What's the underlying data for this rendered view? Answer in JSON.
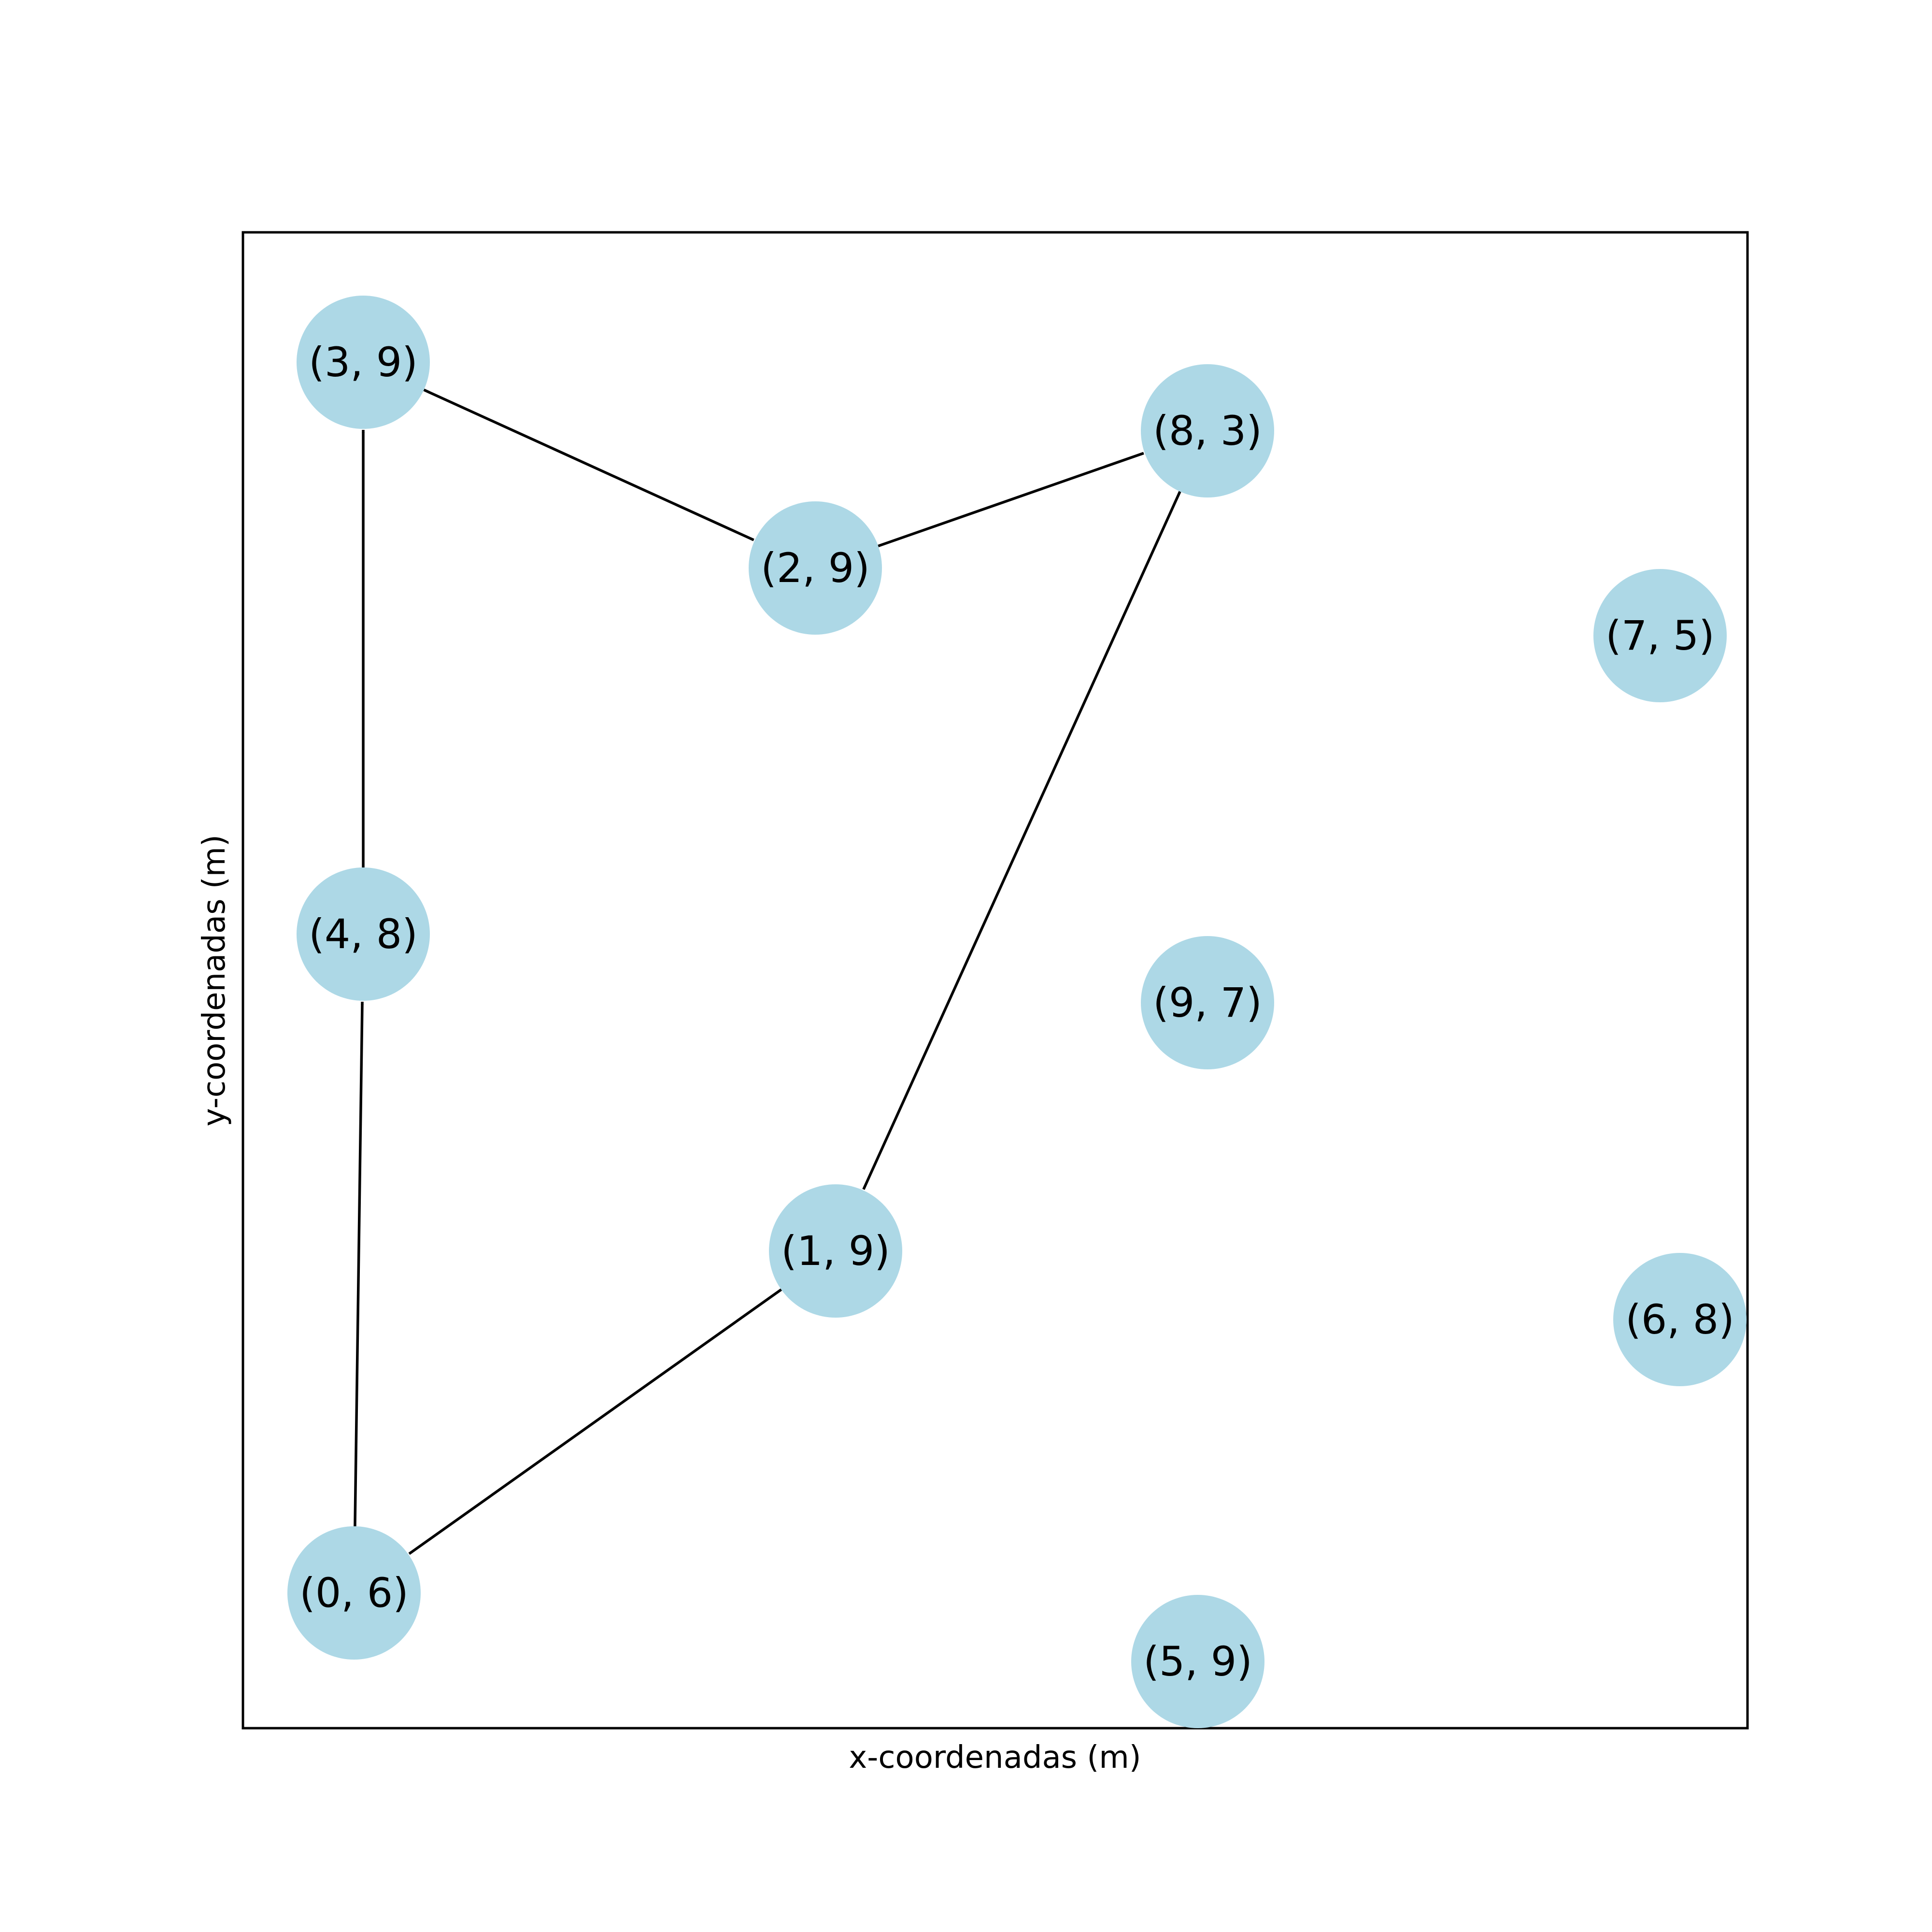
{
  "axes": {
    "xlabel": "x-coordenadas (m)",
    "ylabel": "y-coordenadas (m)"
  },
  "colors": {
    "node_fill": "#add8e6",
    "edge": "#000000",
    "frame": "#000000"
  },
  "nodes": [
    {
      "id": "3_9",
      "label": "(3, 9)"
    },
    {
      "id": "2_9",
      "label": "(2, 9)"
    },
    {
      "id": "8_3",
      "label": "(8, 3)"
    },
    {
      "id": "7_5",
      "label": "(7, 5)"
    },
    {
      "id": "4_8",
      "label": "(4, 8)"
    },
    {
      "id": "9_7",
      "label": "(9, 7)"
    },
    {
      "id": "1_9",
      "label": "(1, 9)"
    },
    {
      "id": "6_8",
      "label": "(6, 8)"
    },
    {
      "id": "0_6",
      "label": "(0, 6)"
    },
    {
      "id": "5_9",
      "label": "(5, 9)"
    }
  ],
  "edges": [
    {
      "from": "0_6",
      "to": "4_8"
    },
    {
      "from": "4_8",
      "to": "3_9"
    },
    {
      "from": "3_9",
      "to": "2_9"
    },
    {
      "from": "2_9",
      "to": "8_3"
    },
    {
      "from": "8_3",
      "to": "1_9"
    },
    {
      "from": "1_9",
      "to": "0_6"
    }
  ]
}
